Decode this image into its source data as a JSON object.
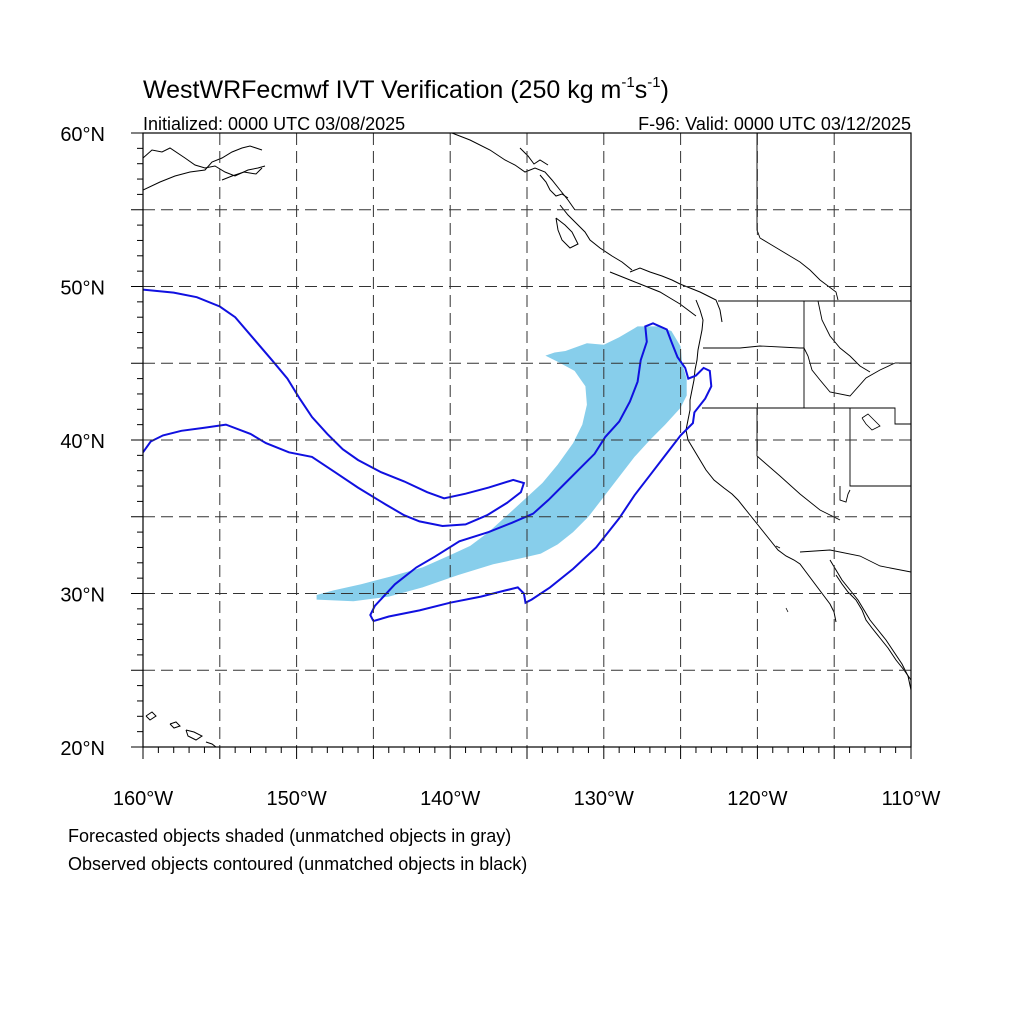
{
  "title": {
    "main": "WestWRFecmwf IVT Verification (250 kg m",
    "exp1": "-1",
    "mid": "s",
    "exp2": "-1",
    "close": ")"
  },
  "subtitle_left": "Initialized: 0000 UTC 03/08/2025",
  "subtitle_right": "F-96: Valid: 0000 UTC 03/12/2025",
  "footnotes": [
    "Forecasted objects shaded (unmatched objects in gray)",
    "Observed objects contoured (unmatched objects in black)"
  ],
  "colors": {
    "forecast_fill": "#87ceeb",
    "observed_contour": "#1010e0",
    "coast": "#000000",
    "grid": "#333333"
  },
  "chart_data": {
    "type": "map",
    "projection": "cylindrical-equidistant",
    "lon_range": [
      -160,
      -110
    ],
    "lat_range": [
      20,
      60
    ],
    "lon_ticks": [
      -160,
      -150,
      -140,
      -130,
      -120,
      -110
    ],
    "lon_tick_labels": [
      "160°W",
      "150°W",
      "140°W",
      "130°W",
      "120°W",
      "110°W"
    ],
    "lat_ticks": [
      20,
      30,
      40,
      50,
      60
    ],
    "lat_tick_labels": [
      "20°N",
      "30°N",
      "40°N",
      "50°N",
      "60°N"
    ],
    "gridlines_every_deg": 5,
    "grid": "dashed",
    "forecast_object": {
      "style": "shaded",
      "outline_lonlat": [
        [
          -148.7,
          29.6
        ],
        [
          -146.3,
          29.5
        ],
        [
          -144.0,
          29.8
        ],
        [
          -141.8,
          30.4
        ],
        [
          -139.5,
          31.2
        ],
        [
          -137.2,
          31.9
        ],
        [
          -135.4,
          32.3
        ],
        [
          -134.1,
          32.6
        ],
        [
          -133.0,
          33.2
        ],
        [
          -132.0,
          34.0
        ],
        [
          -131.0,
          35.0
        ],
        [
          -130.0,
          36.3
        ],
        [
          -129.0,
          37.6
        ],
        [
          -128.0,
          38.9
        ],
        [
          -127.0,
          40.0
        ],
        [
          -126.0,
          41.0
        ],
        [
          -125.0,
          42.1
        ],
        [
          -124.6,
          42.9
        ],
        [
          -124.6,
          44.0
        ],
        [
          -124.9,
          45.0
        ],
        [
          -125.0,
          46.1
        ],
        [
          -125.6,
          47.1
        ],
        [
          -126.5,
          47.4
        ],
        [
          -127.8,
          47.4
        ],
        [
          -129.0,
          46.7
        ],
        [
          -130.0,
          46.2
        ],
        [
          -131.1,
          46.3
        ],
        [
          -132.5,
          45.8
        ],
        [
          -133.2,
          45.7
        ],
        [
          -133.8,
          45.5
        ],
        [
          -133.0,
          45.1
        ],
        [
          -131.9,
          44.5
        ],
        [
          -131.2,
          43.5
        ],
        [
          -131.1,
          42.3
        ],
        [
          -131.4,
          41.0
        ],
        [
          -132.0,
          39.8
        ],
        [
          -133.0,
          38.4
        ],
        [
          -134.0,
          37.2
        ],
        [
          -135.3,
          36.0
        ],
        [
          -136.4,
          35.0
        ],
        [
          -137.5,
          34.0
        ],
        [
          -138.7,
          33.1
        ],
        [
          -140.0,
          32.5
        ],
        [
          -141.8,
          31.7
        ],
        [
          -143.9,
          31.1
        ],
        [
          -145.8,
          30.6
        ],
        [
          -147.6,
          30.2
        ],
        [
          -148.7,
          29.9
        ]
      ]
    },
    "observed_objects": [
      {
        "style": "contour",
        "outline_lonlat": [
          [
            -145.0,
            28.2
          ],
          [
            -144.0,
            28.5
          ],
          [
            -142.0,
            28.9
          ],
          [
            -140.0,
            29.4
          ],
          [
            -138.0,
            29.8
          ],
          [
            -136.4,
            30.2
          ],
          [
            -135.6,
            30.4
          ],
          [
            -135.2,
            30.0
          ],
          [
            -135.1,
            29.4
          ],
          [
            -134.7,
            29.6
          ],
          [
            -133.5,
            30.4
          ],
          [
            -132.0,
            31.6
          ],
          [
            -130.5,
            33.0
          ],
          [
            -129.0,
            34.9
          ],
          [
            -128.0,
            36.4
          ],
          [
            -127.0,
            37.7
          ],
          [
            -126.0,
            39.0
          ],
          [
            -125.0,
            40.3
          ],
          [
            -124.2,
            41.1
          ],
          [
            -124.1,
            41.8
          ],
          [
            -123.4,
            42.7
          ],
          [
            -123.0,
            43.5
          ],
          [
            -123.1,
            44.5
          ],
          [
            -123.5,
            44.7
          ],
          [
            -124.0,
            44.2
          ],
          [
            -124.5,
            44.0
          ],
          [
            -124.7,
            44.7
          ],
          [
            -125.2,
            45.4
          ],
          [
            -125.6,
            46.4
          ],
          [
            -125.9,
            47.2
          ],
          [
            -126.8,
            47.6
          ],
          [
            -127.3,
            47.4
          ],
          [
            -127.2,
            46.4
          ],
          [
            -127.6,
            45.2
          ],
          [
            -127.8,
            43.8
          ],
          [
            -128.3,
            42.5
          ],
          [
            -129.0,
            41.2
          ],
          [
            -129.9,
            40.2
          ],
          [
            -130.6,
            39.1
          ],
          [
            -131.5,
            38.2
          ],
          [
            -132.5,
            37.2
          ],
          [
            -133.6,
            36.1
          ],
          [
            -134.6,
            35.2
          ],
          [
            -136.0,
            34.6
          ],
          [
            -137.5,
            34.0
          ],
          [
            -139.4,
            33.4
          ],
          [
            -141.0,
            32.4
          ],
          [
            -142.2,
            31.7
          ],
          [
            -143.6,
            30.6
          ],
          [
            -144.9,
            29.2
          ],
          [
            -145.2,
            28.6
          ],
          [
            -145.0,
            28.2
          ]
        ]
      },
      {
        "style": "contour",
        "outline_lonlat": [
          [
            -160.0,
            39.2
          ],
          [
            -159.5,
            39.9
          ],
          [
            -158.7,
            40.3
          ],
          [
            -157.5,
            40.6
          ],
          [
            -156.0,
            40.8
          ],
          [
            -154.6,
            41.0
          ],
          [
            -153.0,
            40.4
          ],
          [
            -152.0,
            39.8
          ],
          [
            -150.5,
            39.2
          ],
          [
            -149.0,
            38.9
          ],
          [
            -147.5,
            37.9
          ],
          [
            -146.0,
            36.9
          ],
          [
            -144.2,
            35.8
          ],
          [
            -143.0,
            35.1
          ],
          [
            -142.0,
            34.7
          ],
          [
            -140.5,
            34.4
          ],
          [
            -139.0,
            34.5
          ],
          [
            -137.6,
            35.1
          ],
          [
            -136.3,
            35.9
          ],
          [
            -135.4,
            36.6
          ],
          [
            -135.2,
            37.2
          ],
          [
            -135.9,
            37.4
          ],
          [
            -137.5,
            36.9
          ],
          [
            -139.0,
            36.5
          ],
          [
            -140.4,
            36.2
          ],
          [
            -141.5,
            36.6
          ],
          [
            -143.0,
            37.3
          ],
          [
            -144.5,
            37.9
          ],
          [
            -146.0,
            38.7
          ],
          [
            -147.0,
            39.4
          ],
          [
            -148.0,
            40.4
          ],
          [
            -149.0,
            41.5
          ],
          [
            -149.8,
            42.7
          ],
          [
            -150.6,
            44.0
          ],
          [
            -151.6,
            45.2
          ],
          [
            -152.8,
            46.6
          ],
          [
            -154.0,
            48.0
          ],
          [
            -155.0,
            48.7
          ],
          [
            -156.5,
            49.3
          ],
          [
            -158.0,
            49.6
          ],
          [
            -160.0,
            49.8
          ]
        ]
      }
    ]
  }
}
